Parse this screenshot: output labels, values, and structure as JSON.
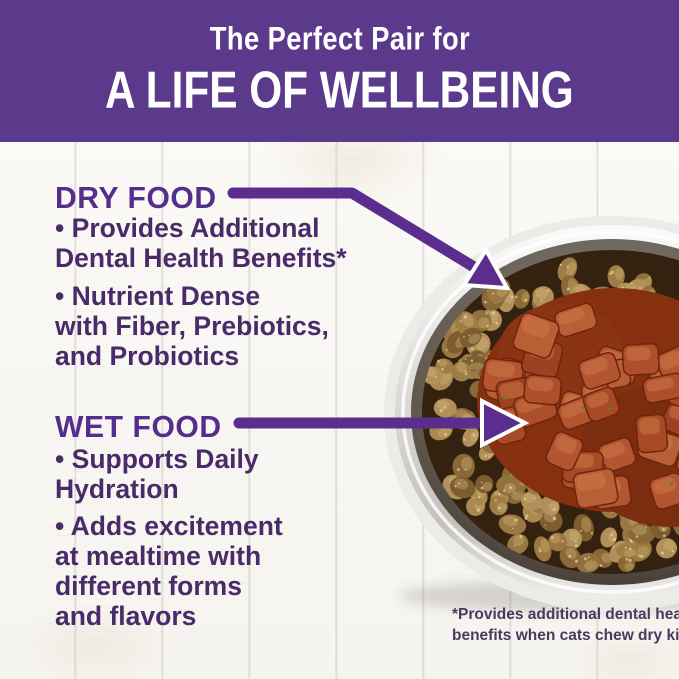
{
  "banner": {
    "eyebrow": "The Perfect Pair for",
    "title": "A LIFE OF WELLBEING"
  },
  "dry_food": {
    "heading": "DRY FOOD",
    "bullet1_line1": "• Provides Additional",
    "bullet1_line2": "Dental Health Benefits*",
    "bullet2_line1": "• Nutrient Dense",
    "bullet2_line2": "with Fiber, Prebiotics,",
    "bullet2_line3": "and Probiotics"
  },
  "wet_food": {
    "heading": "WET FOOD",
    "bullet1_line1": "• Supports Daily",
    "bullet1_line2": "Hydration",
    "bullet2_line1": "• Adds excitement",
    "bullet2_line2": "at mealtime with",
    "bullet2_line3": "different forms",
    "bullet2_line4": "and flavors"
  },
  "footnote": {
    "line1": "*Provides additional dental health",
    "line2": "benefits when cats chew dry kibble"
  },
  "photo": {
    "alt": "Stainless steel bowl of dry kibble with wet food chunks in gravy at the center, on white wood planks"
  },
  "icons": {
    "dry_arrow": "arrow-diagonal-down-right",
    "wet_arrow": "arrow-right"
  },
  "colors": {
    "banner_purple": "#5b3a8c",
    "heading_purple": "#552d8c",
    "body_text_purple": "#4a2b69",
    "arrow_purple": "#5b2d8e",
    "footnote_gray_purple": "#4a3a5e",
    "kibble_brown": "#9a7743",
    "wet_food_red": "#b25530",
    "bowl_steel": "#d9d7d4",
    "background_white_wood": "#fbfaf7"
  }
}
